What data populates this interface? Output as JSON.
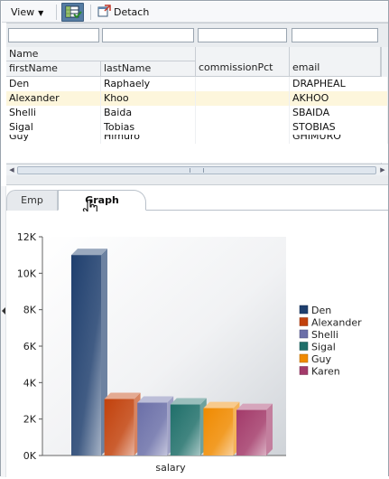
{
  "toolbar": {
    "view_label": "View",
    "detach_label": "Detach",
    "freeze_icon": "freeze-columns-icon",
    "detach_icon": "detach-window-icon"
  },
  "table": {
    "group_header": "Name",
    "columns": [
      "firstName",
      "lastName",
      "commissionPct",
      "email"
    ],
    "rows": [
      {
        "firstName": "Den",
        "lastName": "Raphaely",
        "commissionPct": "",
        "email": "DRAPHEAL"
      },
      {
        "firstName": "Alexander",
        "lastName": "Khoo",
        "commissionPct": "",
        "email": "AKHOO"
      },
      {
        "firstName": "Shelli",
        "lastName": "Baida",
        "commissionPct": "",
        "email": "SBAIDA"
      },
      {
        "firstName": "Sigal",
        "lastName": "Tobias",
        "commissionPct": "",
        "email": "STOBIAS"
      },
      {
        "firstName": "Guy",
        "lastName": "Himuro",
        "commissionPct": "",
        "email": "GHIMURO"
      }
    ],
    "selected_row": 1
  },
  "tabs": [
    {
      "label": "Emp",
      "active": false
    },
    {
      "label": "Graph",
      "active": true
    }
  ],
  "chart_data": {
    "type": "bar",
    "categories": [
      "salary"
    ],
    "series": [
      {
        "name": "Den",
        "values": [
          11000
        ],
        "color": "#1f3f6e"
      },
      {
        "name": "Alexander",
        "values": [
          3100
        ],
        "color": "#c2410c"
      },
      {
        "name": "Shelli",
        "values": [
          2900
        ],
        "color": "#6b6fa8"
      },
      {
        "name": "Sigal",
        "values": [
          2800
        ],
        "color": "#1f6f6a"
      },
      {
        "name": "Guy",
        "values": [
          2600
        ],
        "color": "#f08a00"
      },
      {
        "name": "Karen",
        "values": [
          2500
        ],
        "color": "#a33a6a"
      }
    ],
    "y_ticks": [
      "0K",
      "2K",
      "4K",
      "6K",
      "8K",
      "10K",
      "12K"
    ],
    "ylim": [
      0,
      12000
    ],
    "xlabel": "salary",
    "legend_position": "right"
  }
}
